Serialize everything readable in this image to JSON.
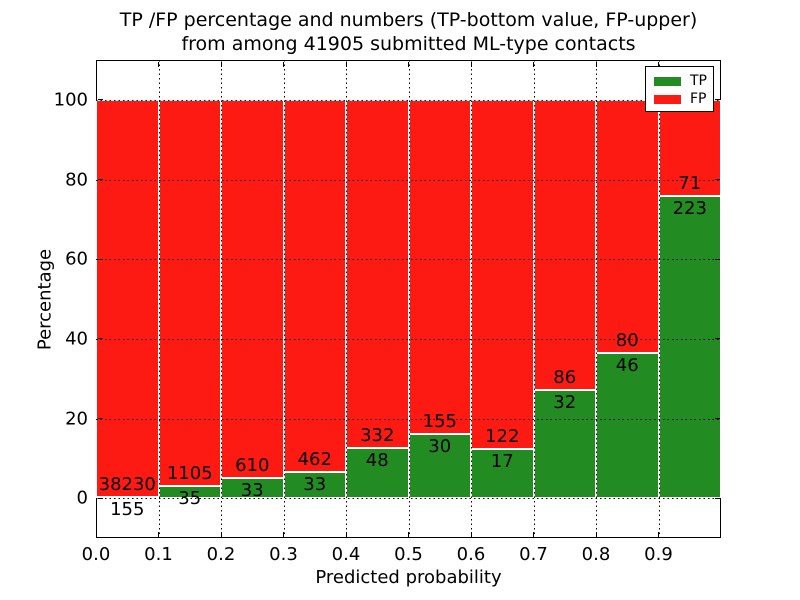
{
  "chart_data": {
    "type": "bar",
    "stacked": true,
    "normalized_to_percent": true,
    "title_line1": "TP /FP percentage and numbers (TP-bottom value, FP-upper)",
    "title_line2": "from among 41905 submitted ML-type contacts",
    "xlabel": "Predicted probability",
    "ylabel": "Percentage",
    "xlim": [
      0.0,
      1.0
    ],
    "ylim": [
      -10,
      110
    ],
    "grid": true,
    "grid_style": "dotted",
    "categories": [
      "0.0-0.1",
      "0.1-0.2",
      "0.2-0.3",
      "0.3-0.4",
      "0.4-0.5",
      "0.5-0.6",
      "0.6-0.7",
      "0.7-0.8",
      "0.8-0.9",
      "0.9-1.0"
    ],
    "bins": [
      {
        "x0": 0.0,
        "x1": 0.1,
        "tp": 155,
        "fp": 38230
      },
      {
        "x0": 0.1,
        "x1": 0.2,
        "tp": 35,
        "fp": 1105
      },
      {
        "x0": 0.2,
        "x1": 0.3,
        "tp": 33,
        "fp": 610
      },
      {
        "x0": 0.3,
        "x1": 0.4,
        "tp": 33,
        "fp": 462
      },
      {
        "x0": 0.4,
        "x1": 0.5,
        "tp": 48,
        "fp": 332
      },
      {
        "x0": 0.5,
        "x1": 0.6,
        "tp": 30,
        "fp": 155
      },
      {
        "x0": 0.6,
        "x1": 0.7,
        "tp": 17,
        "fp": 122
      },
      {
        "x0": 0.7,
        "x1": 0.8,
        "tp": 32,
        "fp": 86
      },
      {
        "x0": 0.8,
        "x1": 0.9,
        "tp": 46,
        "fp": 80
      },
      {
        "x0": 0.9,
        "x1": 1.0,
        "tp": 223,
        "fp": 71
      }
    ],
    "series": [
      {
        "name": "TP",
        "color": "#228b22",
        "values": [
          155,
          35,
          33,
          33,
          48,
          30,
          17,
          32,
          46,
          223
        ]
      },
      {
        "name": "FP",
        "color": "#fc1a13",
        "values": [
          38230,
          1105,
          610,
          462,
          332,
          155,
          122,
          86,
          80,
          71
        ]
      }
    ],
    "xticks": [
      {
        "v": 0.0,
        "label": "0.0"
      },
      {
        "v": 0.1,
        "label": "0.1"
      },
      {
        "v": 0.2,
        "label": "0.2"
      },
      {
        "v": 0.3,
        "label": "0.3"
      },
      {
        "v": 0.4,
        "label": "0.4"
      },
      {
        "v": 0.5,
        "label": "0.5"
      },
      {
        "v": 0.6,
        "label": "0.6"
      },
      {
        "v": 0.7,
        "label": "0.7"
      },
      {
        "v": 0.8,
        "label": "0.8"
      },
      {
        "v": 0.9,
        "label": "0.9"
      }
    ],
    "yticks": [
      {
        "v": 0,
        "label": "0"
      },
      {
        "v": 20,
        "label": "20"
      },
      {
        "v": 40,
        "label": "40"
      },
      {
        "v": 60,
        "label": "60"
      },
      {
        "v": 80,
        "label": "80"
      },
      {
        "v": 100,
        "label": "100"
      }
    ],
    "legend": {
      "position": "upper right",
      "entries": [
        {
          "label": "TP",
          "color": "#228b22"
        },
        {
          "label": "FP",
          "color": "#fc1a13"
        }
      ]
    },
    "colors": {
      "tp": "#228b22",
      "fp": "#fc1a13",
      "bar_edge": "#ffffff",
      "axes": "#000000",
      "background": "#ffffff"
    }
  }
}
